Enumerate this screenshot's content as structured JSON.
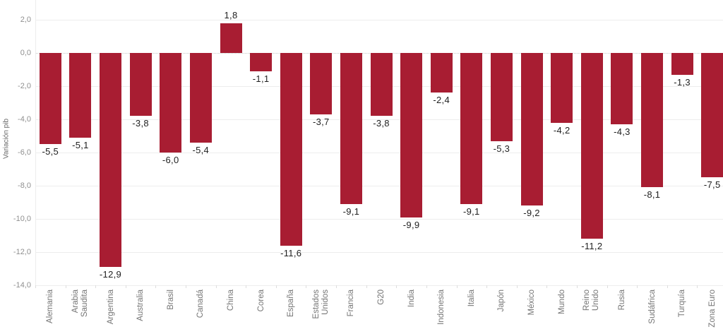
{
  "chart_data": {
    "type": "bar",
    "title": "",
    "ylabel": "Variación pib",
    "xlabel": "",
    "legend_position": "none",
    "grid": true,
    "bar_color": "#a81d32",
    "categories": [
      "Alemania",
      "Arabia\nSaudita",
      "Argentina",
      "Australia",
      "Brasil",
      "Canadá",
      "China",
      "Corea",
      "España",
      "Estados\nUnidos",
      "Francia",
      "G20",
      "India",
      "Indonesia",
      "Italia",
      "Japón",
      "México",
      "Mundo",
      "Reino\nUnido",
      "Rusia",
      "Sudáfrica",
      "Turquía",
      "Zona Euro"
    ],
    "values": [
      -5.5,
      -5.1,
      -12.9,
      -3.8,
      -6.0,
      -5.4,
      1.8,
      -1.1,
      -11.6,
      -3.7,
      -9.1,
      -3.8,
      -9.9,
      -2.4,
      -9.1,
      -5.3,
      -9.2,
      -4.2,
      -11.2,
      -4.3,
      -8.1,
      -1.3,
      -7.5
    ],
    "value_labels": [
      "-5,5",
      "-5,1",
      "-12,9",
      "-3,8",
      "-6,0",
      "-5,4",
      "1,8",
      "-1,1",
      "-11,6",
      "-3,7",
      "-9,1",
      "-3,8",
      "-9,9",
      "-2,4",
      "-9,1",
      "-5,3",
      "-9,2",
      "-4,2",
      "-11,2",
      "-4,3",
      "-8,1",
      "-1,3",
      "-7,5"
    ],
    "yticks": [
      2,
      0,
      -2,
      -4,
      -6,
      -8,
      -10,
      -12,
      -14
    ],
    "ytick_labels": [
      "2,0",
      "0,0",
      "-2,0",
      "-4,0",
      "-6,0",
      "-8,0",
      "-10,0",
      "-12,0",
      "-14,0"
    ],
    "ylim": [
      -14.6,
      3.2
    ]
  }
}
